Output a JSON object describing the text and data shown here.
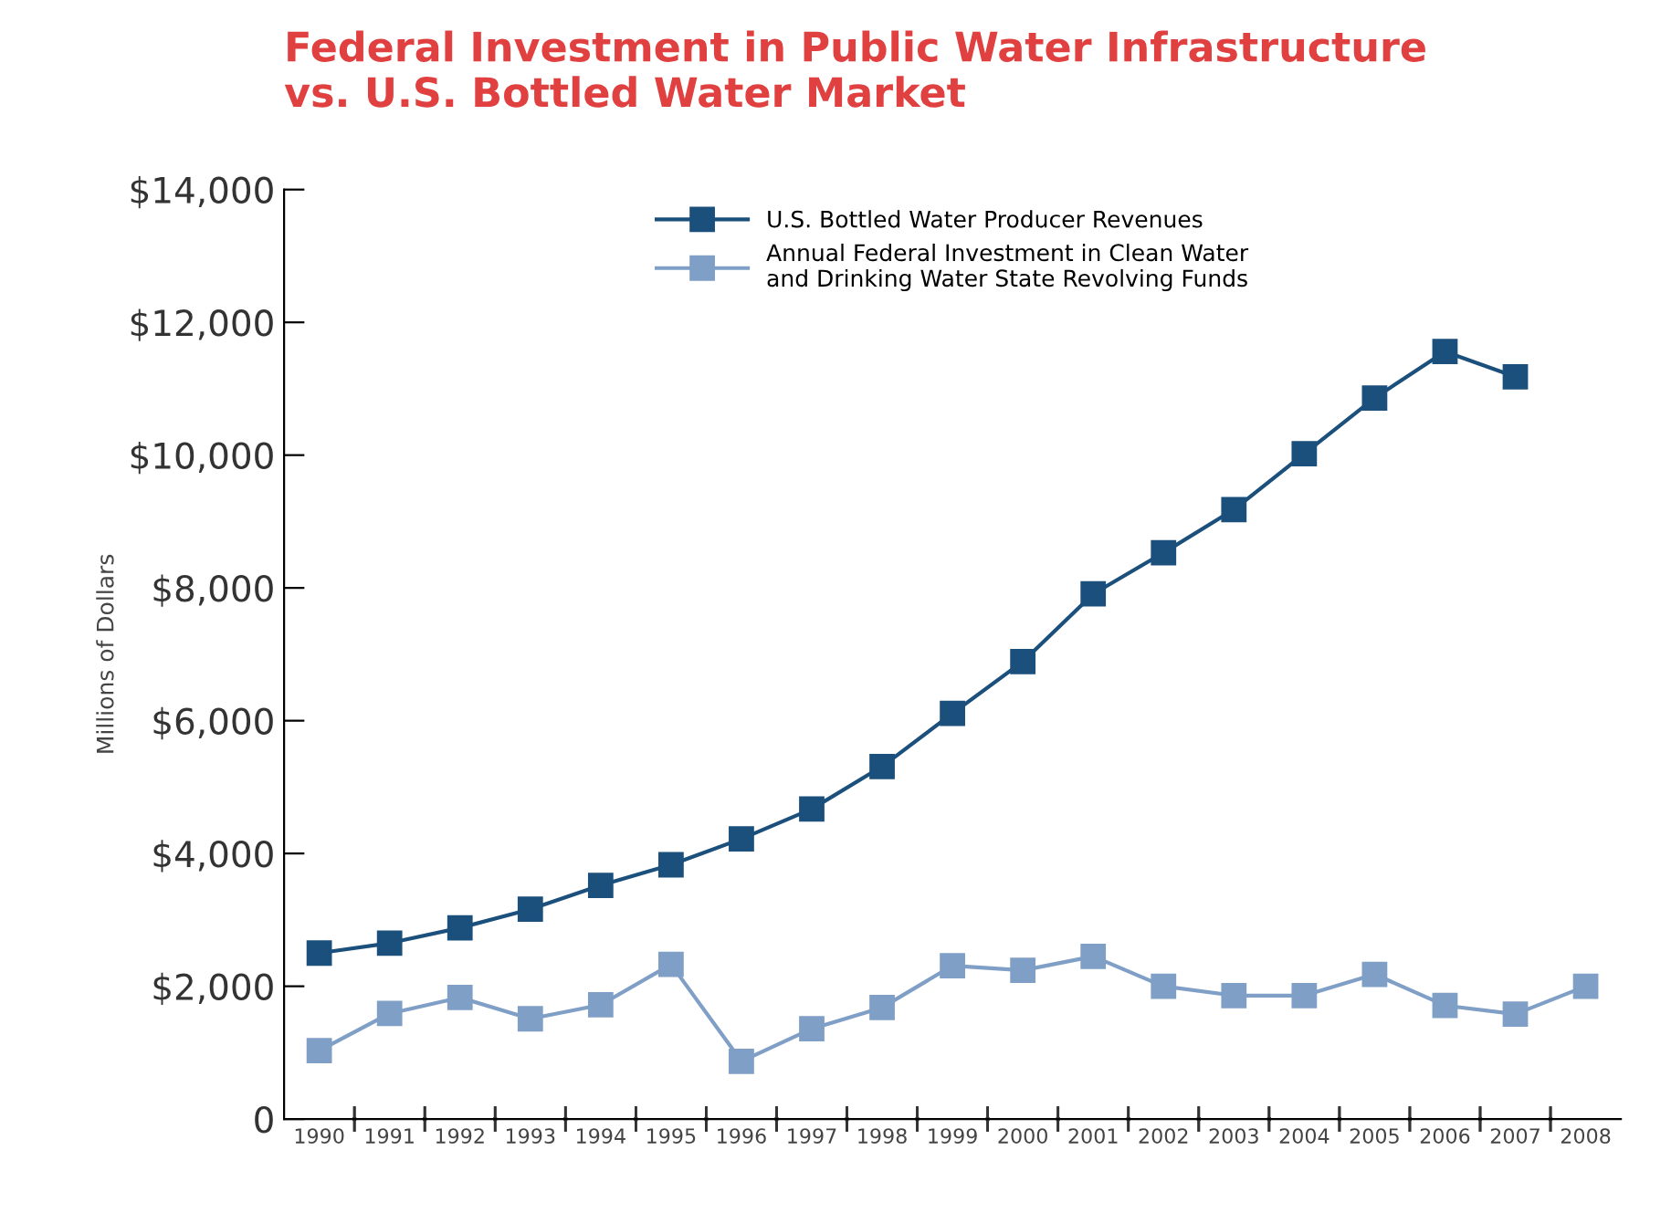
{
  "chart_data": {
    "type": "line",
    "title": "Federal Investment in Public Water Infrastructure\nvs. U.S. Bottled Water Market",
    "ylabel": "Millions of Dollars",
    "categories": [
      "1990",
      "1991",
      "1992",
      "1993",
      "1994",
      "1995",
      "1996",
      "1997",
      "1998",
      "1999",
      "2000",
      "2001",
      "2002",
      "2003",
      "2004",
      "2005",
      "2006",
      "2007",
      "2008"
    ],
    "series": [
      {
        "name": "U.S. Bottled Water Producer Revenues",
        "color": "#1b4f7c",
        "values": [
          2500,
          2650,
          2880,
          3160,
          3520,
          3830,
          4220,
          4670,
          5310,
          6110,
          6890,
          7910,
          8530,
          9180,
          10020,
          10860,
          11560,
          11180,
          null
        ]
      },
      {
        "name": "Annual Federal Investment in Clean Water\nand Drinking Water State Revolving Funds",
        "color": "#7f9fc6",
        "values": [
          1030,
          1590,
          1830,
          1510,
          1720,
          2330,
          870,
          1360,
          1680,
          2310,
          2240,
          2450,
          2000,
          1860,
          1860,
          2180,
          1710,
          1580,
          2000
        ]
      }
    ],
    "ylim": [
      0,
      14000
    ],
    "yticks": [
      0,
      {
        "value": 2000,
        "label": "$2,000"
      },
      {
        "value": 4000,
        "label": "$4,000"
      },
      {
        "value": 6000,
        "label": "$6,000"
      },
      {
        "value": 8000,
        "label": "$8,000"
      },
      {
        "value": 10000,
        "label": "$10,000"
      },
      {
        "value": 12000,
        "label": "$12,000"
      },
      {
        "value": 14000,
        "label": "$14,000"
      }
    ],
    "marker": "square",
    "line_style": "solid",
    "grid": false,
    "legend": "top"
  }
}
